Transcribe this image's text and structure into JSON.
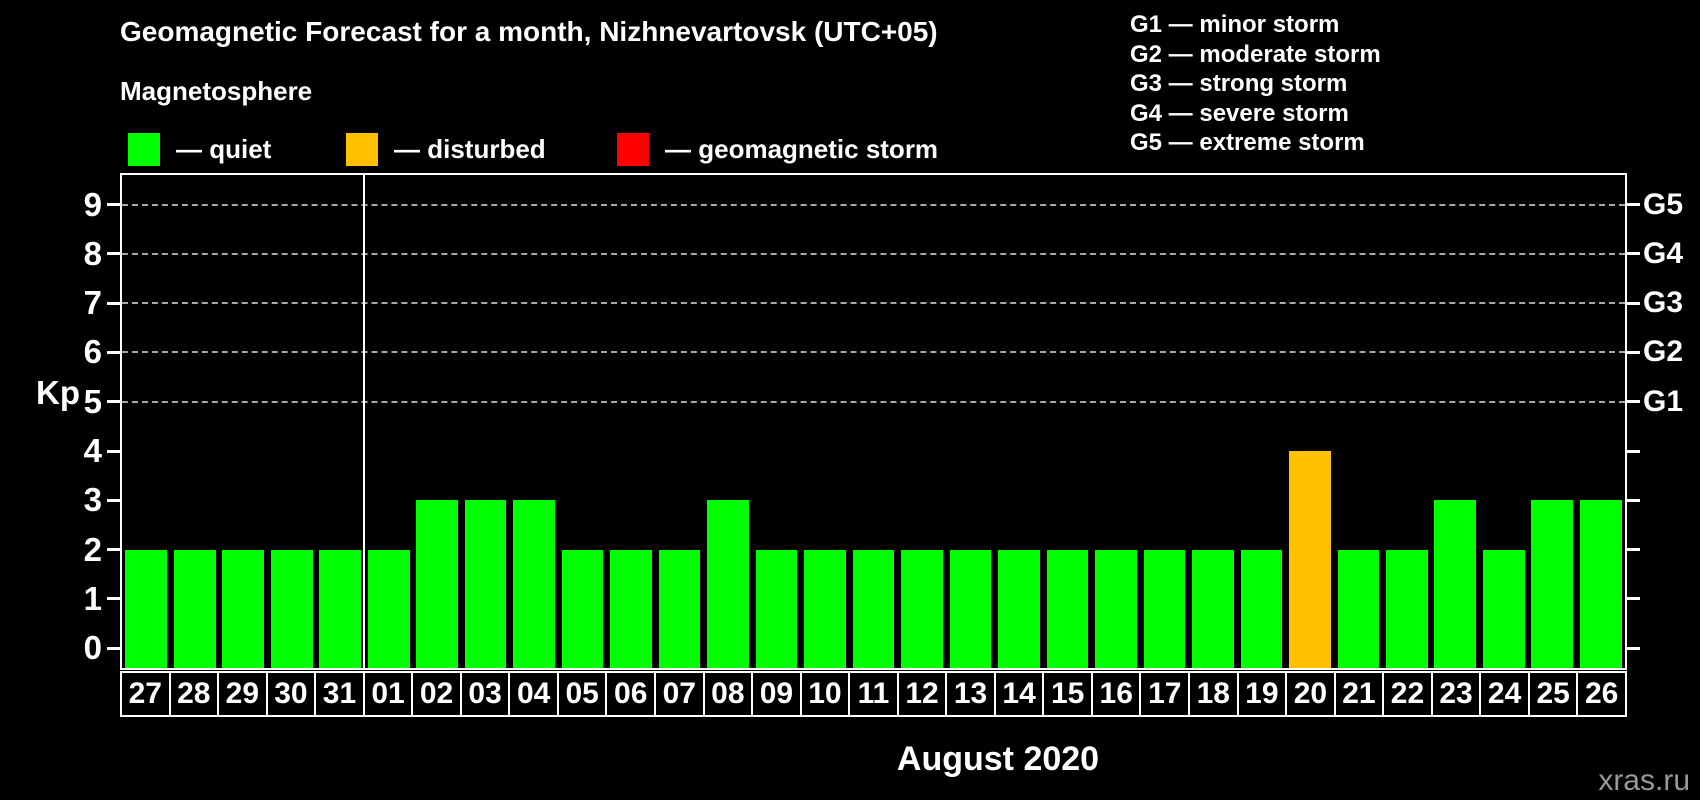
{
  "header": {
    "title": "Geomagnetic Forecast for a month, Nizhnevartovsk (UTC+05)",
    "subtitle": "Magnetosphere"
  },
  "legend": {
    "items": [
      {
        "name": "quiet",
        "label": "— quiet",
        "color": "#00ff00"
      },
      {
        "name": "disturbed",
        "label": "— disturbed",
        "color": "#ffc000"
      },
      {
        "name": "geomagnetic-storm",
        "label": "— geomagnetic storm",
        "color": "#ff0000"
      }
    ]
  },
  "storm_scale": {
    "items": [
      "G1 — minor storm",
      "G2 — moderate storm",
      "G3 — strong storm",
      "G4 — severe storm",
      "G5 — extreme storm"
    ]
  },
  "chart_data": {
    "type": "bar",
    "title": "Geomagnetic Forecast for a month, Nizhnevartovsk (UTC+05)",
    "xlabel": "August 2020",
    "ylabel": "Kp",
    "ylim": [
      -0.4,
      9.6
    ],
    "yticks": [
      0,
      1,
      2,
      3,
      4,
      5,
      6,
      7,
      8,
      9
    ],
    "gridlines": [
      5,
      6,
      7,
      8,
      9
    ],
    "grid_style": "dashed",
    "legend_position": "top",
    "right_axis_labels": [
      {
        "label": "G1",
        "kp": 5
      },
      {
        "label": "G2",
        "kp": 6
      },
      {
        "label": "G3",
        "kp": 7
      },
      {
        "label": "G4",
        "kp": 8
      },
      {
        "label": "G5",
        "kp": 9
      }
    ],
    "categories": [
      "27",
      "28",
      "29",
      "30",
      "31",
      "01",
      "02",
      "03",
      "04",
      "05",
      "06",
      "07",
      "08",
      "09",
      "10",
      "11",
      "12",
      "13",
      "14",
      "15",
      "16",
      "17",
      "18",
      "19",
      "20",
      "21",
      "22",
      "23",
      "24",
      "25",
      "26"
    ],
    "values": [
      2,
      2,
      2,
      2,
      2,
      2,
      3,
      3,
      3,
      2,
      2,
      2,
      3,
      2,
      2,
      2,
      2,
      2,
      2,
      2,
      2,
      2,
      2,
      2,
      4,
      2,
      2,
      3,
      2,
      3,
      3
    ],
    "statuses": [
      "quiet",
      "quiet",
      "quiet",
      "quiet",
      "quiet",
      "quiet",
      "quiet",
      "quiet",
      "quiet",
      "quiet",
      "quiet",
      "quiet",
      "quiet",
      "quiet",
      "quiet",
      "quiet",
      "quiet",
      "quiet",
      "quiet",
      "quiet",
      "quiet",
      "quiet",
      "quiet",
      "quiet",
      "disturbed",
      "quiet",
      "quiet",
      "quiet",
      "quiet",
      "quiet",
      "quiet"
    ],
    "colors": {
      "quiet": "#00ff00",
      "disturbed": "#ffc000",
      "storm": "#ff0000"
    },
    "month_separator_index": 5
  },
  "footer": {
    "xaxis_title": "August 2020",
    "watermark": "xras.ru"
  }
}
